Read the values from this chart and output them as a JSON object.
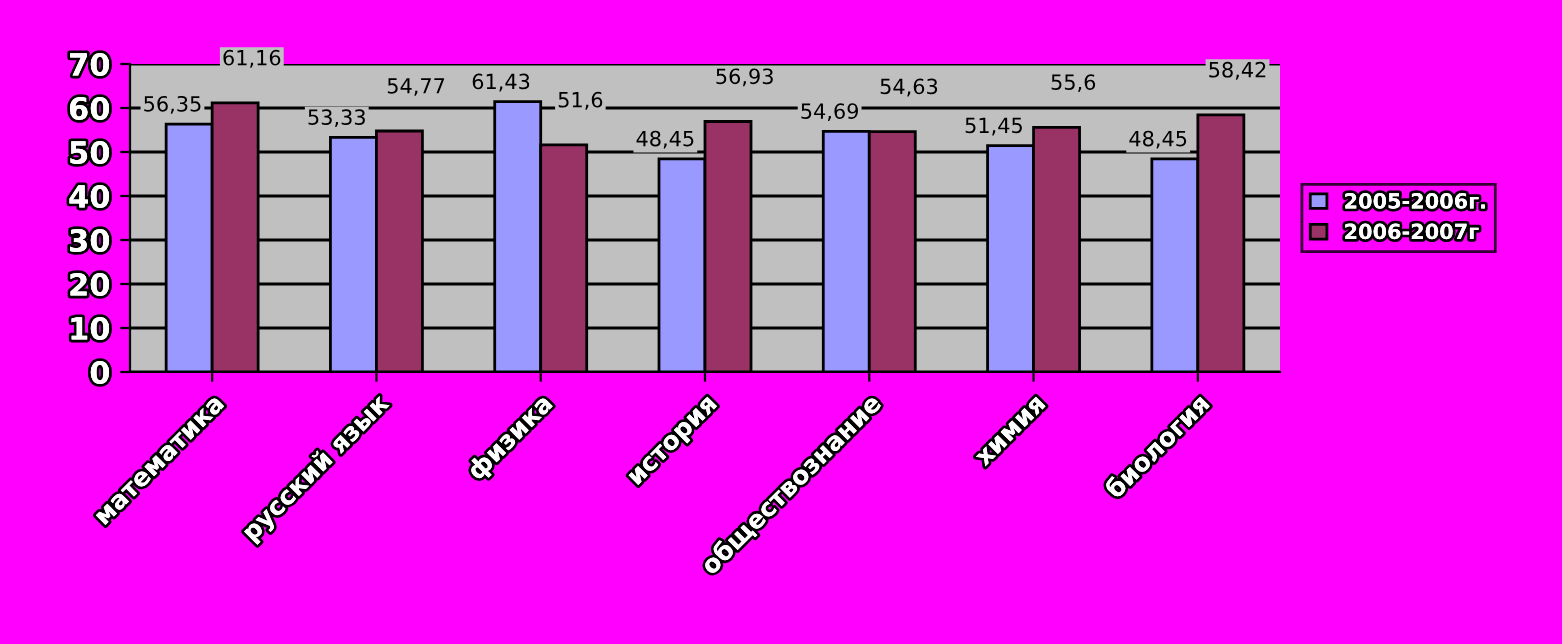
{
  "chart_data": {
    "type": "bar",
    "categories": [
      "математика",
      "русский язык",
      "физика",
      "история",
      "обществознание",
      "химия",
      "биология"
    ],
    "series": [
      {
        "name": "2005-2006г.",
        "color": "#9999ff",
        "values": [
          56.35,
          53.33,
          61.43,
          48.45,
          54.69,
          51.45,
          48.45
        ],
        "value_labels": [
          "56,35",
          "53,33",
          "61,43",
          "48,45",
          "54,69",
          "51,45",
          "48,45"
        ]
      },
      {
        "name": "2006-2007г",
        "color": "#993366",
        "values": [
          61.16,
          54.77,
          51.6,
          56.93,
          54.63,
          55.6,
          58.42
        ],
        "value_labels": [
          "61,16",
          "54,77",
          "51,6",
          "56,93",
          "54,63",
          "55,6",
          "58,42"
        ]
      }
    ],
    "ylim": [
      0,
      70
    ],
    "yticks": [
      0,
      10,
      20,
      30,
      40,
      50,
      60,
      70
    ],
    "grid": "y",
    "legend": "right"
  }
}
